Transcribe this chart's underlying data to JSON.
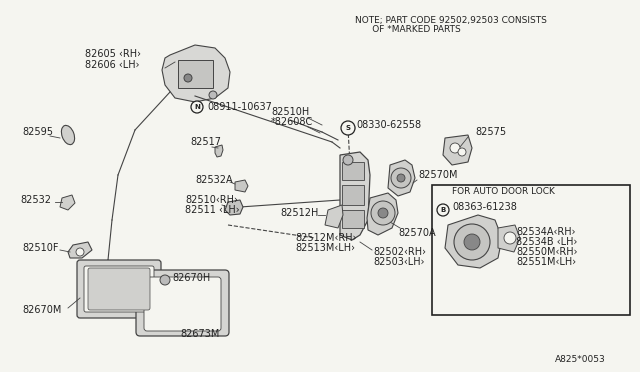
{
  "bg_color": "#f5f5f0",
  "note_text1": "NOTE; PART CODE 92502,92503 CONSISTS",
  "note_text2": "      OF *MARKED PARTS",
  "diagram_id": "A825*0053",
  "fs": 6.5
}
